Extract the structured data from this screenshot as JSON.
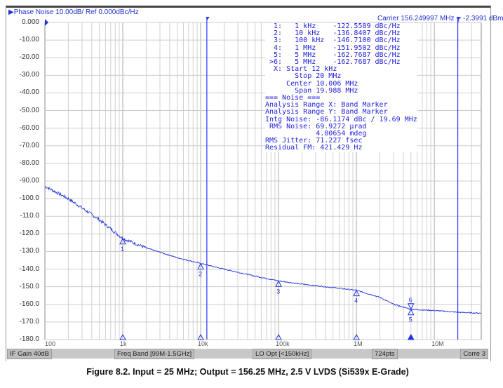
{
  "header": {
    "title": "Phase Noise 10.00dB/ Ref 0.000dBc/Hz",
    "carrier": "Carrier 156.249997 MHz",
    "carrier_power": "-2.3991 dBm"
  },
  "marker_table": [
    "  1:   1 kHz    -122.5589 dBc/Hz",
    "  2:   10 kHz   -136.8407 dBc/Hz",
    "  3:   100 kHz  -146.7100 dBc/Hz",
    "  4:   1 MHz    -151.9502 dBc/Hz",
    "  5:   5 MHz    -162.7687 dBc/Hz",
    " >6:   5 MHz    -162.7687 dBc/Hz",
    "  X: Start 12 kHz",
    "       Stop 20 MHz",
    "     Center 10.006 MHz",
    "       Span 19.988 MHz",
    "=== Noise ===",
    "Analysis Range X: Band Marker",
    "Analysis Range Y: Band Marker",
    "Intg Noise: -86.1174 dBc / 19.69 MHz",
    " RMS Noise: 69.9272 µrad",
    "            4.00654 mdeg",
    "RMS Jitter: 71.227 fsec",
    "Residual FM: 421.429 Hz"
  ],
  "status": {
    "if_gain": "IF Gain 40dB",
    "freq_band": "Freq Band [99M-1.5GHz]",
    "lo_opt": "LO Opt [<150kHz]",
    "points": "724pts",
    "corre": "Corre 3"
  },
  "caption": "Figure 8.2.  Input = 25 MHz; Output = 156.25 MHz, 2.5 V LVDS (Si539x E-Grade)",
  "chart_data": {
    "type": "line",
    "x_scale": "log",
    "xlim": [
      100,
      40000000
    ],
    "ylim": [
      -180,
      0
    ],
    "x_ticks": [
      {
        "value": 100,
        "label": "100"
      },
      {
        "value": 1000,
        "label": "1k"
      },
      {
        "value": 10000,
        "label": "10k"
      },
      {
        "value": 100000,
        "label": "100k"
      },
      {
        "value": 1000000,
        "label": "1M"
      },
      {
        "value": 10000000,
        "label": "10M"
      }
    ],
    "y_ticks": [
      "0.000",
      "-10.00",
      "-20.00",
      "-30.00",
      "-40.00",
      "-50.00",
      "-60.00",
      "-70.00",
      "-80.00",
      "-90.00",
      "-100.0",
      "-110.0",
      "-120.0",
      "-130.0",
      "-140.0",
      "-150.0",
      "-160.0",
      "-170.0",
      "-180.0"
    ],
    "grid": true,
    "band_markers": [
      12000,
      20000000
    ],
    "series": [
      {
        "color": "#2233dd",
        "x": [
          100,
          200,
          500,
          1000,
          2000,
          5000,
          10000,
          20000,
          50000,
          100000,
          200000,
          500000,
          1000000,
          2000000,
          3000000,
          5000000,
          10000000,
          20000000,
          40000000
        ],
        "y": [
          -93,
          -100,
          -112,
          -122.6,
          -128,
          -133.5,
          -136.8,
          -140,
          -144,
          -146.7,
          -148.5,
          -150.5,
          -152,
          -156,
          -160,
          -162.8,
          -163.5,
          -164.5,
          -165
        ]
      }
    ],
    "markers": [
      {
        "label": "1",
        "x": 1000,
        "y": -122.5589
      },
      {
        "label": "2",
        "x": 10000,
        "y": -136.8407
      },
      {
        "label": "3",
        "x": 100000,
        "y": -146.71
      },
      {
        "label": "4",
        "x": 1000000,
        "y": -151.9502
      },
      {
        "label": "5",
        "x": 5000000,
        "y": -162.7687
      },
      {
        "label": "6",
        "x": 5000000,
        "y": -162.7687
      }
    ]
  }
}
